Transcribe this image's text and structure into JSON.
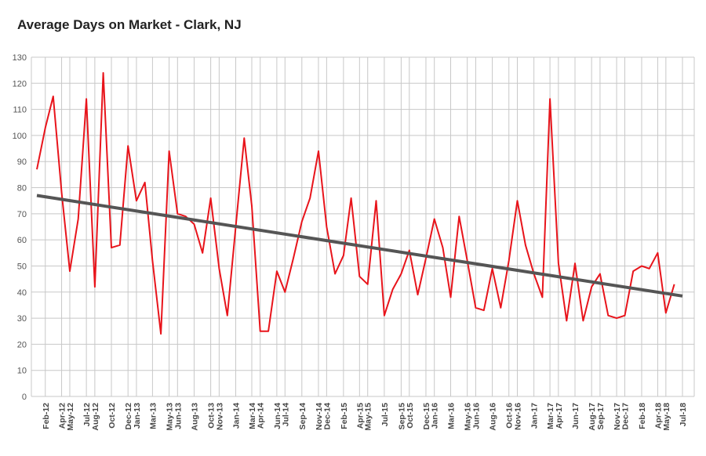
{
  "chart_data": {
    "type": "line",
    "title": "Average Days on Market - Clark, NJ",
    "x": [
      "2012-01",
      "2012-02",
      "2012-03",
      "2012-04",
      "2012-05",
      "2012-06",
      "2012-07",
      "2012-08",
      "2012-09",
      "2012-10",
      "2012-11",
      "2012-12",
      "2013-01",
      "2013-02",
      "2013-03",
      "2013-04",
      "2013-05",
      "2013-06",
      "2013-07",
      "2013-08",
      "2013-09",
      "2013-10",
      "2013-11",
      "2013-12",
      "2014-01",
      "2014-02",
      "2014-03",
      "2014-04",
      "2014-05",
      "2014-06",
      "2014-07",
      "2014-08",
      "2014-09",
      "2014-10",
      "2014-11",
      "2014-12",
      "2015-01",
      "2015-02",
      "2015-03",
      "2015-04",
      "2015-05",
      "2015-06",
      "2015-07",
      "2015-08",
      "2015-09",
      "2015-10",
      "2015-11",
      "2015-12",
      "2016-01",
      "2016-02",
      "2016-03",
      "2016-04",
      "2016-05",
      "2016-06",
      "2016-07",
      "2016-08",
      "2016-09",
      "2016-10",
      "2016-11",
      "2016-12",
      "2017-01",
      "2017-02",
      "2017-03",
      "2017-04",
      "2017-05",
      "2017-06",
      "2017-07",
      "2017-08",
      "2017-09",
      "2017-10",
      "2017-11",
      "2017-12",
      "2018-01",
      "2018-02",
      "2018-03",
      "2018-04",
      "2018-05",
      "2018-06",
      "2018-07"
    ],
    "series": [
      {
        "color": "#e8141b",
        "values": [
          87,
          103,
          115,
          78,
          48,
          68,
          114,
          42,
          124,
          57,
          58,
          96,
          75,
          82,
          52,
          24,
          94,
          70,
          69,
          66,
          55,
          76,
          49,
          31,
          65,
          99,
          73,
          25,
          25,
          48,
          40,
          53,
          67,
          76,
          94,
          65,
          47,
          54,
          76,
          46,
          43,
          75,
          31,
          41,
          47,
          56,
          39,
          53,
          68,
          57,
          38,
          69,
          52,
          34,
          33,
          49,
          34,
          52,
          75,
          58,
          47,
          38,
          114,
          51,
          29,
          51,
          29,
          42,
          47,
          31,
          30,
          31,
          48,
          50,
          49,
          55,
          32,
          43,
          null
        ]
      }
    ],
    "trendline": {
      "color": "#555555",
      "x": [
        "2012-01",
        "2018-07"
      ],
      "values": [
        77,
        38.5
      ]
    },
    "xlim": [
      "2012-01",
      "2018-07"
    ],
    "xticks": [
      {
        "value": "2012-02",
        "label": "Feb-12"
      },
      {
        "value": "2012-04",
        "label": "Apr-12"
      },
      {
        "value": "2012-05",
        "label": "May-12"
      },
      {
        "value": "2012-07",
        "label": "Jul-12"
      },
      {
        "value": "2012-08",
        "label": "Aug-12"
      },
      {
        "value": "2012-10",
        "label": "Oct-12"
      },
      {
        "value": "2012-12",
        "label": "Dec-12"
      },
      {
        "value": "2013-01",
        "label": "Jan-13"
      },
      {
        "value": "2013-03",
        "label": "Mar-13"
      },
      {
        "value": "2013-05",
        "label": "May-13"
      },
      {
        "value": "2013-06",
        "label": "Jun-13"
      },
      {
        "value": "2013-08",
        "label": "Aug-13"
      },
      {
        "value": "2013-10",
        "label": "Oct-13"
      },
      {
        "value": "2013-11",
        "label": "Nov-13"
      },
      {
        "value": "2014-01",
        "label": "Jan-14"
      },
      {
        "value": "2014-03",
        "label": "Mar-14"
      },
      {
        "value": "2014-04",
        "label": "Apr-14"
      },
      {
        "value": "2014-06",
        "label": "Jun-14"
      },
      {
        "value": "2014-07",
        "label": "Jul-14"
      },
      {
        "value": "2014-09",
        "label": "Sep-14"
      },
      {
        "value": "2014-11",
        "label": "Nov-14"
      },
      {
        "value": "2014-12",
        "label": "Dec-14"
      },
      {
        "value": "2015-02",
        "label": "Feb-15"
      },
      {
        "value": "2015-04",
        "label": "Apr-15"
      },
      {
        "value": "2015-05",
        "label": "May-15"
      },
      {
        "value": "2015-07",
        "label": "Jul-15"
      },
      {
        "value": "2015-09",
        "label": "Sep-15"
      },
      {
        "value": "2015-10",
        "label": "Oct-15"
      },
      {
        "value": "2015-12",
        "label": "Dec-15"
      },
      {
        "value": "2016-01",
        "label": "Jan-16"
      },
      {
        "value": "2016-03",
        "label": "Mar-16"
      },
      {
        "value": "2016-05",
        "label": "May-16"
      },
      {
        "value": "2016-06",
        "label": "Jun-16"
      },
      {
        "value": "2016-08",
        "label": "Aug-16"
      },
      {
        "value": "2016-10",
        "label": "Oct-16"
      },
      {
        "value": "2016-11",
        "label": "Nov-16"
      },
      {
        "value": "2017-01",
        "label": "Jan-17"
      },
      {
        "value": "2017-03",
        "label": "Mar-17"
      },
      {
        "value": "2017-04",
        "label": "Apr-17"
      },
      {
        "value": "2017-06",
        "label": "Jun-17"
      },
      {
        "value": "2017-08",
        "label": "Aug-17"
      },
      {
        "value": "2017-09",
        "label": "Sep-17"
      },
      {
        "value": "2017-11",
        "label": "Nov-17"
      },
      {
        "value": "2017-12",
        "label": "Dec-17"
      },
      {
        "value": "2018-02",
        "label": "Feb-18"
      },
      {
        "value": "2018-04",
        "label": "Apr-18"
      },
      {
        "value": "2018-05",
        "label": "May-18"
      },
      {
        "value": "2018-07",
        "label": "Jul-18"
      }
    ],
    "ylim": [
      0,
      130
    ],
    "yticks": [
      0,
      10,
      20,
      30,
      40,
      50,
      60,
      70,
      80,
      90,
      100,
      110,
      120,
      130
    ],
    "grid": true
  }
}
